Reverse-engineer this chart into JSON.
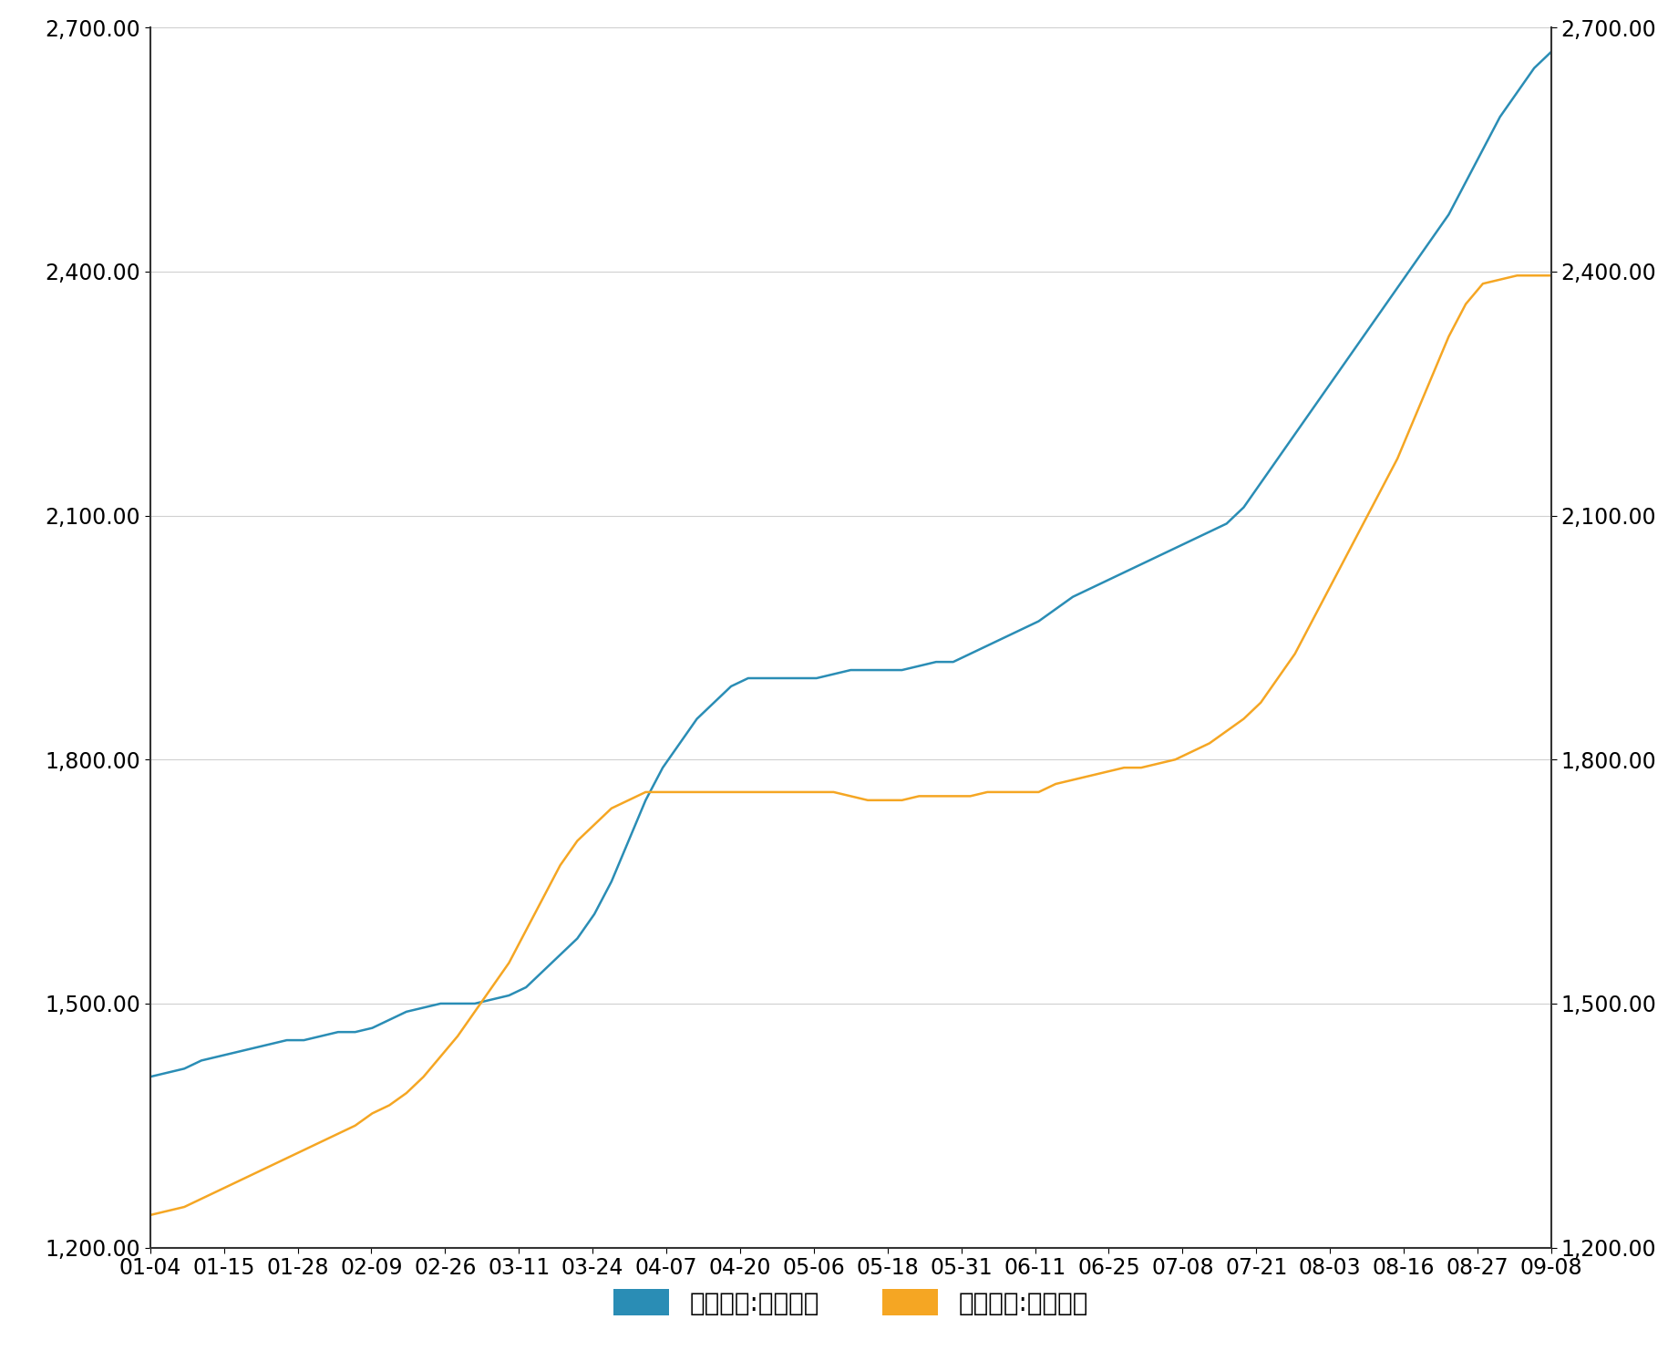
{
  "heavy_soda_color": "#2a8db5",
  "light_soda_color": "#f5a623",
  "background_color": "#ffffff",
  "ylim": [
    1200,
    2700
  ],
  "yticks": [
    1200,
    1500,
    1800,
    2100,
    2400,
    2700
  ],
  "xtick_labels": [
    "01-04",
    "01-15",
    "01-28",
    "02-09",
    "02-26",
    "03-11",
    "03-24",
    "04-07",
    "04-20",
    "05-06",
    "05-18",
    "05-31",
    "06-11",
    "06-25",
    "07-08",
    "07-21",
    "08-03",
    "08-16",
    "08-27",
    "09-08"
  ],
  "legend_labels": [
    "参考价格:重质纯碱",
    "参考价格:轻质纯碱"
  ],
  "grid_color": "#d0d0d0",
  "heavy_soda_data": [
    1410,
    1415,
    1420,
    1430,
    1435,
    1440,
    1445,
    1450,
    1455,
    1455,
    1460,
    1465,
    1465,
    1470,
    1480,
    1490,
    1495,
    1500,
    1500,
    1500,
    1505,
    1510,
    1520,
    1540,
    1560,
    1580,
    1610,
    1650,
    1700,
    1750,
    1790,
    1820,
    1850,
    1870,
    1890,
    1900,
    1900,
    1900,
    1900,
    1900,
    1905,
    1910,
    1910,
    1910,
    1910,
    1915,
    1920,
    1920,
    1930,
    1940,
    1950,
    1960,
    1970,
    1985,
    2000,
    2010,
    2020,
    2030,
    2040,
    2050,
    2060,
    2070,
    2080,
    2090,
    2110,
    2140,
    2170,
    2200,
    2230,
    2260,
    2290,
    2320,
    2350,
    2380,
    2410,
    2440,
    2470,
    2510,
    2550,
    2590,
    2620,
    2650,
    2670
  ],
  "light_soda_data": [
    1240,
    1245,
    1250,
    1260,
    1270,
    1280,
    1290,
    1300,
    1310,
    1320,
    1330,
    1340,
    1350,
    1365,
    1375,
    1390,
    1410,
    1435,
    1460,
    1490,
    1520,
    1550,
    1590,
    1630,
    1670,
    1700,
    1720,
    1740,
    1750,
    1760,
    1760,
    1760,
    1760,
    1760,
    1760,
    1760,
    1760,
    1760,
    1760,
    1760,
    1760,
    1755,
    1750,
    1750,
    1750,
    1755,
    1755,
    1755,
    1755,
    1760,
    1760,
    1760,
    1760,
    1770,
    1775,
    1780,
    1785,
    1790,
    1790,
    1795,
    1800,
    1810,
    1820,
    1835,
    1850,
    1870,
    1900,
    1930,
    1970,
    2010,
    2050,
    2090,
    2130,
    2170,
    2220,
    2270,
    2320,
    2360,
    2385,
    2390,
    2395,
    2395,
    2395
  ]
}
